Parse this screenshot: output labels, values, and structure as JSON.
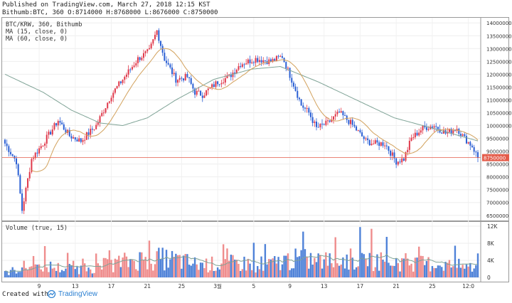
{
  "header": {
    "published": "Published on TradingView.com, March 27, 2018 12:15 KST",
    "ohlc": "Bithumb:BTC, 360 O:8714000 H:8768000 L:8676000 C:8750000"
  },
  "legend": {
    "symbol": "BTC/KRW, 360, Bithumb",
    "ma15": "MA (15, close, 0)",
    "ma60": "MA (60, close, 0)",
    "volume": "Volume (true, 15)"
  },
  "footer": {
    "created_with": "Created with",
    "brand": "TradingView"
  },
  "colors": {
    "up": "#e0384a",
    "down": "#2a5fd4",
    "vol_up": "#ef8d8d",
    "vol_down": "#4f82d8",
    "ma15": "#d2a15c",
    "ma60": "#7fa396",
    "price_line": "#e45c4a"
  },
  "chart_data": {
    "type": "candlestick",
    "price_axis": {
      "min": 6300000,
      "max": 14200000,
      "ticks": [
        "14000000",
        "13500000",
        "13000000",
        "12500000",
        "12000000",
        "11500000",
        "11000000",
        "10500000",
        "10000000",
        "9500000",
        "9000000",
        "8500000",
        "8000000",
        "7500000",
        "7000000",
        "6500000"
      ]
    },
    "last_price": "8750000",
    "volume_axis": {
      "max": 12000,
      "ticks": [
        "12K",
        "8K",
        "4K",
        "0"
      ]
    },
    "x_ticks": [
      "9",
      "13",
      "17",
      "21",
      "25",
      "3월",
      "5",
      "9",
      "13",
      "17",
      "21",
      "25",
      "12:0"
    ],
    "ohlc_keypoints": [
      [
        0,
        9300000
      ],
      [
        6,
        8600000
      ],
      [
        9,
        6700000
      ],
      [
        14,
        8700000
      ],
      [
        20,
        9300000
      ],
      [
        28,
        10200000
      ],
      [
        34,
        9600000
      ],
      [
        40,
        9400000
      ],
      [
        48,
        10000000
      ],
      [
        56,
        11200000
      ],
      [
        62,
        11800000
      ],
      [
        70,
        12600000
      ],
      [
        76,
        12900000
      ],
      [
        80,
        13700000
      ],
      [
        84,
        12600000
      ],
      [
        90,
        11800000
      ],
      [
        96,
        11900000
      ],
      [
        100,
        11300000
      ],
      [
        104,
        11200000
      ],
      [
        112,
        11700000
      ],
      [
        118,
        11900000
      ],
      [
        124,
        12400000
      ],
      [
        132,
        12600000
      ],
      [
        140,
        12500000
      ],
      [
        146,
        12700000
      ],
      [
        152,
        11600000
      ],
      [
        156,
        10800000
      ],
      [
        160,
        10500000
      ],
      [
        164,
        9900000
      ],
      [
        170,
        10100000
      ],
      [
        176,
        10500000
      ],
      [
        182,
        10100000
      ],
      [
        190,
        9400000
      ],
      [
        194,
        9300000
      ],
      [
        200,
        9300000
      ],
      [
        206,
        8600000
      ],
      [
        210,
        8700000
      ],
      [
        214,
        9500000
      ],
      [
        220,
        9900000
      ],
      [
        226,
        10000000
      ],
      [
        232,
        9700000
      ],
      [
        238,
        9900000
      ],
      [
        242,
        9500000
      ],
      [
        246,
        9200000
      ],
      [
        249,
        8750000
      ]
    ],
    "ma60_keypoints": [
      [
        0,
        12000000
      ],
      [
        20,
        11300000
      ],
      [
        35,
        10600000
      ],
      [
        50,
        10100000
      ],
      [
        62,
        10000000
      ],
      [
        75,
        10300000
      ],
      [
        90,
        11000000
      ],
      [
        110,
        11800000
      ],
      [
        130,
        12200000
      ],
      [
        145,
        12300000
      ],
      [
        165,
        11700000
      ],
      [
        185,
        11000000
      ],
      [
        205,
        10300000
      ],
      [
        225,
        9900000
      ],
      [
        249,
        9400000
      ]
    ],
    "volume_keypoints": [
      [
        0,
        1000
      ],
      [
        10,
        2500
      ],
      [
        20,
        2800
      ],
      [
        30,
        2200
      ],
      [
        40,
        2100
      ],
      [
        50,
        2700
      ],
      [
        60,
        3500
      ],
      [
        70,
        4300
      ],
      [
        80,
        4500
      ],
      [
        90,
        4200
      ],
      [
        100,
        3200
      ],
      [
        110,
        3100
      ],
      [
        120,
        3400
      ],
      [
        130,
        3300
      ],
      [
        140,
        3200
      ],
      [
        150,
        4300
      ],
      [
        160,
        4200
      ],
      [
        170,
        3900
      ],
      [
        180,
        4300
      ],
      [
        190,
        4500
      ],
      [
        200,
        3800
      ],
      [
        210,
        3700
      ],
      [
        220,
        3300
      ],
      [
        230,
        3200
      ],
      [
        240,
        2700
      ],
      [
        249,
        2300
      ]
    ]
  }
}
